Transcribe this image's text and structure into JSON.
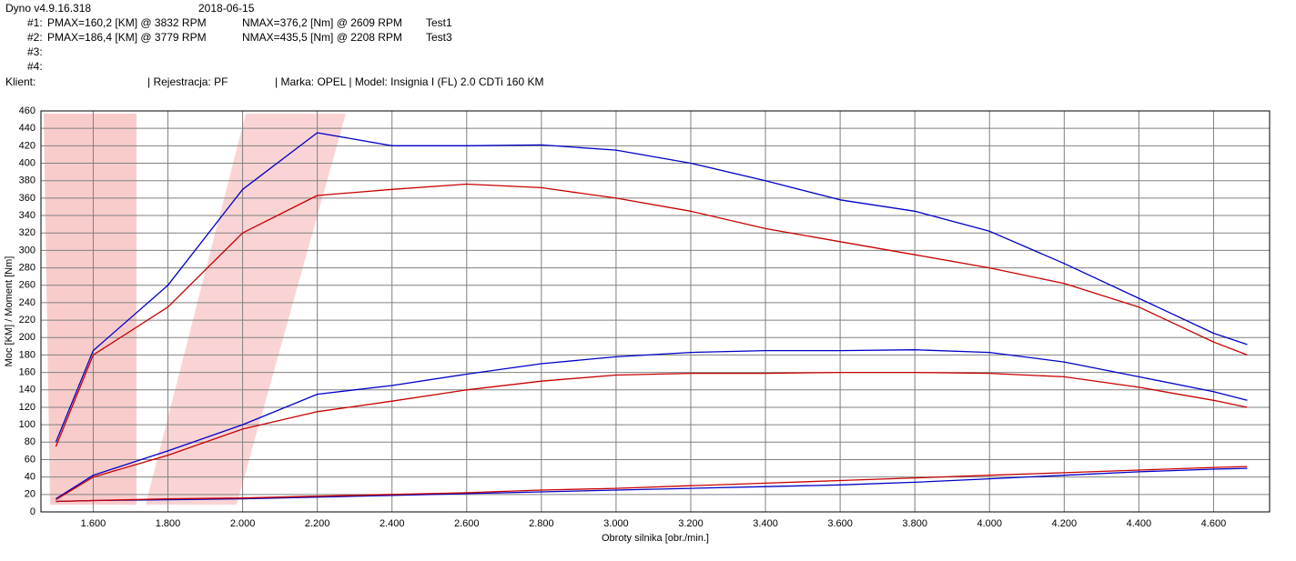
{
  "header": {
    "app": "Dyno v4.9.16.318",
    "date": "2018-06-15",
    "runs": [
      {
        "label": "#1:",
        "pmax": "PMAX=160,2 [KM] @ 3832 RPM",
        "nmax": "NMAX=376,2 [Nm] @ 2609 RPM",
        "test": "Test1"
      },
      {
        "label": "#2:",
        "pmax": "PMAX=186,4 [KM] @ 3779 RPM",
        "nmax": "NMAX=435,5 [Nm] @ 2208 RPM",
        "test": "Test3"
      },
      {
        "label": "#3:"
      },
      {
        "label": "#4:"
      }
    ],
    "client": "Klient:",
    "registration": "| Rejestracja: PF",
    "car": "| Marka: OPEL | Model: Insignia I (FL) 2.0 CDTi 160 KM"
  },
  "chart_data": {
    "type": "line",
    "x_label": "Obroty silnika [obr./min.]",
    "y_label": "Moc [KM] / Moment [Nm]",
    "x": [
      1500,
      1600,
      1800,
      2000,
      2200,
      2400,
      2600,
      2800,
      3000,
      3200,
      3400,
      3600,
      3800,
      4000,
      4200,
      4400,
      4600,
      4690
    ],
    "series": [
      {
        "color": "#0000c8",
        "values": [
          80,
          185,
          260,
          370,
          435,
          420,
          420,
          421,
          415,
          400,
          380,
          358,
          345,
          322,
          285,
          245,
          205,
          192
        ]
      },
      {
        "color": "#c80000",
        "values": [
          75,
          180,
          235,
          320,
          363,
          370,
          376,
          372,
          360,
          345,
          325,
          310,
          295,
          280,
          262,
          235,
          195,
          180
        ]
      },
      {
        "color": "#0000c8",
        "values": [
          15,
          42,
          70,
          100,
          135,
          145,
          158,
          170,
          178,
          183,
          185,
          185,
          186,
          183,
          172,
          155,
          138,
          128
        ]
      },
      {
        "color": "#c80000",
        "values": [
          14,
          40,
          65,
          95,
          115,
          127,
          140,
          150,
          157,
          159,
          159,
          160,
          160,
          159,
          155,
          143,
          128,
          120
        ]
      },
      {
        "color": "#0000c8",
        "values": [
          12,
          13,
          14,
          15,
          17,
          19,
          21,
          23,
          25,
          27,
          29,
          31,
          34,
          38,
          42,
          46,
          49,
          50
        ]
      },
      {
        "color": "#c80000",
        "values": [
          12,
          13,
          15,
          16,
          18,
          20,
          22,
          25,
          27,
          30,
          33,
          36,
          39,
          42,
          45,
          48,
          51,
          52
        ]
      }
    ],
    "xlim": [
      1460,
      4750
    ],
    "xticks": [
      {
        "value": 1600,
        "label": "1.600"
      },
      {
        "value": 1800,
        "label": "1.800"
      },
      {
        "value": 2000,
        "label": "2.000"
      },
      {
        "value": 2200,
        "label": "2.200"
      },
      {
        "value": 2400,
        "label": "2.400"
      },
      {
        "value": 2600,
        "label": "2.600"
      },
      {
        "value": 2800,
        "label": "2.800"
      },
      {
        "value": 3000,
        "label": "3.000"
      },
      {
        "value": 3200,
        "label": "3.200"
      },
      {
        "value": 3400,
        "label": "3.400"
      },
      {
        "value": 3600,
        "label": "3.600"
      },
      {
        "value": 3800,
        "label": "3.800"
      },
      {
        "value": 4000,
        "label": "4.000"
      },
      {
        "value": 4200,
        "label": "4.200"
      },
      {
        "value": 4400,
        "label": "4.400"
      },
      {
        "value": 4600,
        "label": "4.600"
      }
    ],
    "ylim": [
      0,
      460
    ],
    "yticks": [
      0,
      20,
      40,
      60,
      80,
      100,
      120,
      140,
      160,
      180,
      200,
      220,
      240,
      260,
      280,
      300,
      320,
      340,
      360,
      380,
      400,
      420,
      440,
      460
    ],
    "grid": true
  }
}
